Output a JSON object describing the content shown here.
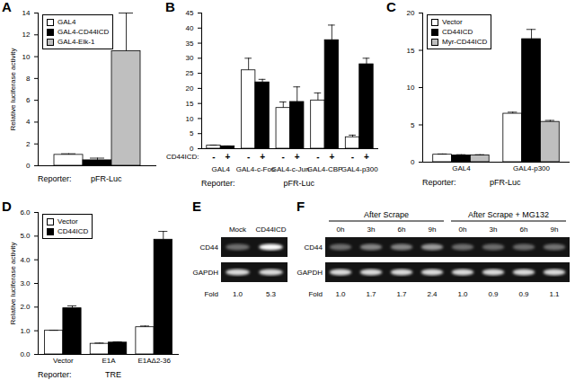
{
  "chart_data": [
    {
      "type": "bar",
      "title": "A",
      "ylabel": "Relative luciferase activity",
      "categories": [
        null
      ],
      "series": [
        {
          "name": "GAL4",
          "color": "#ffffff",
          "values": [
            1.0
          ],
          "errors": [
            0.1
          ]
        },
        {
          "name": "GAL4-CD44ICD",
          "color": "#000000",
          "values": [
            0.5
          ],
          "errors": [
            0.2
          ]
        },
        {
          "name": "GAL4-Elk-1",
          "color": "#bfbfbf",
          "values": [
            10.5
          ],
          "errors": [
            3.5
          ]
        }
      ],
      "ylim": [
        0,
        14
      ],
      "yticks": [
        0,
        2,
        4,
        6,
        8,
        10,
        12,
        14
      ],
      "legend": "top-left",
      "reporter_label": "Reporter:",
      "reporter": "pFR-Luc"
    },
    {
      "type": "bar",
      "title": "B",
      "categories": [
        "GAL4",
        "GAL4-c-Fos",
        "GAL4-c-Jun",
        "GAL4-CBP",
        "GAL4-p300"
      ],
      "series_label": "CD44ICD:",
      "series": [
        {
          "name": "-",
          "color": "#ffffff",
          "values": [
            1.0,
            26,
            13.5,
            16,
            3.8
          ],
          "errors": [
            0.2,
            4,
            2,
            2.5,
            0.7
          ]
        },
        {
          "name": "+",
          "color": "#000000",
          "values": [
            0.8,
            22,
            15.5,
            36,
            28
          ],
          "errors": [
            0.1,
            1,
            5,
            5,
            2
          ]
        }
      ],
      "ylim": [
        0,
        45
      ],
      "yticks": [
        0,
        5,
        10,
        15,
        20,
        25,
        30,
        35,
        40,
        45
      ],
      "reporter_label": "Reporter:",
      "reporter": "pFR-Luc"
    },
    {
      "type": "bar",
      "title": "C",
      "categories": [
        "GAL4",
        "GAL4-p300"
      ],
      "series": [
        {
          "name": "Vector",
          "color": "#ffffff",
          "values": [
            1.0,
            6.5
          ],
          "errors": [
            0.1,
            0.2
          ]
        },
        {
          "name": "CD44ICD",
          "color": "#000000",
          "values": [
            0.9,
            16.5
          ],
          "errors": [
            0.1,
            1.3
          ]
        },
        {
          "name": "Myr-CD44ICD",
          "color": "#bfbfbf",
          "values": [
            0.9,
            5.4
          ],
          "errors": [
            0.1,
            0.2
          ]
        }
      ],
      "ylim": [
        0,
        20
      ],
      "yticks": [
        0,
        5,
        10,
        15,
        20
      ],
      "legend": "top-left",
      "reporter_label": "Reporter:",
      "reporter": "pFR-Luc"
    },
    {
      "type": "bar",
      "title": "D",
      "ylabel": "Relative luciferase activity",
      "categories": [
        "Vector",
        "E1A",
        "E1AΔ2-36"
      ],
      "series": [
        {
          "name": "Vector",
          "color": "#ffffff",
          "values": [
            1.0,
            0.45,
            1.15
          ],
          "errors": [
            0.02,
            0.03,
            0.05
          ]
        },
        {
          "name": "CD44ICD",
          "color": "#000000",
          "values": [
            1.95,
            0.5,
            4.85
          ],
          "errors": [
            0.1,
            0.03,
            0.35
          ]
        }
      ],
      "ylim": [
        0,
        6
      ],
      "yticks": [
        0,
        1,
        2,
        3,
        4,
        5,
        6
      ],
      "legend": "top-left",
      "reporter_label": "Reporter:",
      "reporter": "TRE"
    },
    {
      "type": "gel",
      "title": "E",
      "groups": [
        {
          "lanes": [
            "Mock",
            "CD44ICD"
          ]
        }
      ],
      "rows": [
        "CD44",
        "GAPDH"
      ],
      "fold_label": "Fold",
      "fold": [
        1.0,
        5.3
      ],
      "fold_labels": [
        "1.0",
        "5.3"
      ]
    },
    {
      "type": "gel",
      "title": "F",
      "groups": [
        {
          "label": "After Scrape",
          "lanes": [
            "0h",
            "3h",
            "6h",
            "9h"
          ]
        },
        {
          "label": "After Scrape + MG132",
          "lanes": [
            "0h",
            "3h",
            "6h",
            "9h"
          ]
        }
      ],
      "rows": [
        "CD44",
        "GAPDH"
      ],
      "fold_label": "Fold",
      "fold": [
        1.0,
        1.7,
        1.7,
        2.4,
        1.0,
        0.9,
        0.9,
        1.1
      ],
      "fold_labels": [
        "1.0",
        "1.7",
        "1.7",
        "2.4",
        "1.0",
        "0.9",
        "0.9",
        "1.1"
      ]
    }
  ]
}
